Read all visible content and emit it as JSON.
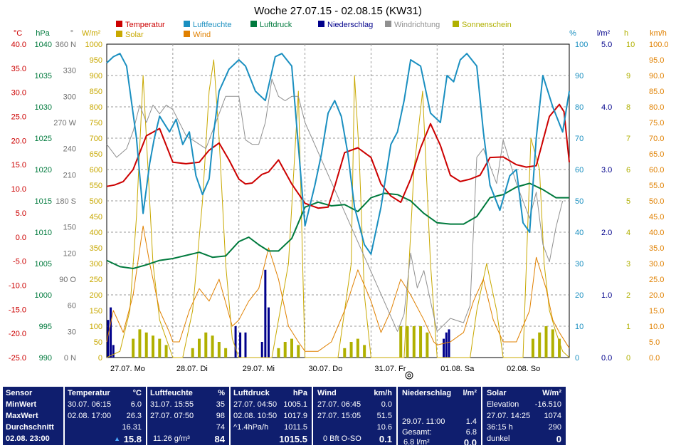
{
  "chart_data": {
    "type": "line",
    "title": "Woche 27.07.15 - 02.08.15 (KW31)",
    "x_range": [
      "2015-07-27 00:00",
      "2015-08-03 00:00"
    ],
    "day_labels": [
      "27.07. Mo",
      "28.07. Di",
      "29.07. Mi",
      "30.07. Do",
      "31.07. Fr",
      "01.08. Sa",
      "02.08. So"
    ],
    "grid": true,
    "legend": [
      {
        "name": "Temperatur",
        "color": "#cc0000"
      },
      {
        "name": "Luftfeuchte",
        "color": "#1a8fc0"
      },
      {
        "name": "Luftdruck",
        "color": "#007a3d"
      },
      {
        "name": "Niederschlag",
        "color": "#00008b"
      },
      {
        "name": "Windrichtung",
        "color": "#909090"
      },
      {
        "name": "Sonnenschein",
        "color": "#b0b000"
      },
      {
        "name": "Solar",
        "color": "#c8a800"
      },
      {
        "name": "Wind",
        "color": "#e08000"
      }
    ],
    "axes": {
      "temperature": {
        "unit": "°C",
        "range": [
          -25,
          40
        ],
        "ticks": [
          "40.0",
          "35.0",
          "30.0",
          "25.0",
          "20.0",
          "15.0",
          "10.0",
          "5.0",
          "0.0",
          "-5.0",
          "-10.0",
          "-15.0",
          "-20.0",
          "-25.0"
        ],
        "color": "#cc0000"
      },
      "pressure": {
        "unit": "hPa",
        "range": [
          990,
          1040
        ],
        "ticks": [
          "1040",
          "1035",
          "1030",
          "1025",
          "1020",
          "1015",
          "1010",
          "1005",
          "1000",
          "995",
          "990"
        ],
        "color": "#007a3d"
      },
      "direction": {
        "unit": "°",
        "range": [
          0,
          360
        ],
        "ticks": [
          "360 N",
          "330",
          "300",
          "270 W",
          "240",
          "210",
          "180 S",
          "150",
          "120",
          "90 O",
          "60",
          "30",
          "0 N"
        ],
        "color": "#707070"
      },
      "solar": {
        "unit": "W/m²",
        "range": [
          0,
          1000
        ],
        "ticks": [
          "1000",
          "950",
          "900",
          "850",
          "800",
          "750",
          "700",
          "650",
          "600",
          "550",
          "500",
          "450",
          "400",
          "350",
          "300",
          "250",
          "200",
          "150",
          "100",
          "50",
          "0"
        ],
        "color": "#c8a800"
      },
      "humidity": {
        "unit": "%",
        "range": [
          0,
          100
        ],
        "ticks": [
          "100",
          "90",
          "80",
          "70",
          "60",
          "50",
          "40",
          "30",
          "20",
          "10",
          "0"
        ],
        "color": "#1a8fc0"
      },
      "rain": {
        "unit": "l/m²",
        "range": [
          0,
          5
        ],
        "ticks": [
          "5.0",
          "4.0",
          "3.0",
          "2.0",
          "1.0",
          "0.0"
        ],
        "color": "#00008b"
      },
      "sunshine": {
        "unit": "h",
        "range": [
          0,
          10
        ],
        "ticks": [
          "10",
          "9",
          "8",
          "7",
          "6",
          "5",
          "4",
          "3",
          "2",
          "1",
          "0"
        ],
        "color": "#b0b000"
      },
      "wind": {
        "unit": "km/h",
        "range": [
          0,
          100
        ],
        "ticks": [
          "100.0",
          "95.0",
          "90.0",
          "85.0",
          "80.0",
          "75.0",
          "70.0",
          "65.0",
          "60.0",
          "55.0",
          "50.0",
          "45.0",
          "40.0",
          "35.0",
          "30.0",
          "25.0",
          "20.0",
          "15.0",
          "10.0",
          "5.0",
          "0.0"
        ],
        "color": "#e08000"
      }
    },
    "series": [
      {
        "name": "Temperatur",
        "axis": "temperature",
        "color": "#cc0000",
        "x": [
          0,
          0.12,
          0.25,
          0.4,
          0.6,
          0.8,
          1.0,
          1.2,
          1.4,
          1.55,
          1.7,
          1.85,
          2.0,
          2.1,
          2.2,
          2.35,
          2.45,
          2.6,
          2.8,
          3.0,
          3.2,
          3.35,
          3.45,
          3.6,
          3.8,
          4.0,
          4.15,
          4.3,
          4.45,
          4.6,
          4.75,
          4.9,
          5.05,
          5.2,
          5.35,
          5.5,
          5.65,
          5.8,
          6.0,
          6.2,
          6.35,
          6.5,
          6.7,
          6.85,
          6.92,
          7.0
        ],
        "y": [
          10.5,
          10.8,
          11.5,
          14,
          21,
          22.5,
          15.5,
          15.2,
          15.5,
          18,
          19.5,
          16,
          12,
          11,
          11.2,
          13,
          13.5,
          16,
          11,
          7,
          6,
          6.2,
          10.5,
          17.5,
          18.5,
          16.5,
          11,
          8.5,
          7.2,
          12,
          18.5,
          23.5,
          19,
          12.8,
          11.5,
          12,
          12.8,
          16.5,
          16.6,
          15,
          14.5,
          14.8,
          25,
          27.5,
          26,
          15.5
        ]
      },
      {
        "name": "Luftfeuchte",
        "axis": "humidity",
        "color": "#1a8fc0",
        "x": [
          0,
          0.1,
          0.2,
          0.3,
          0.45,
          0.55,
          0.65,
          0.72,
          0.8,
          0.95,
          1.05,
          1.15,
          1.25,
          1.35,
          1.45,
          1.55,
          1.62,
          1.7,
          1.85,
          2.0,
          2.1,
          2.25,
          2.4,
          2.55,
          2.65,
          2.8,
          3.0,
          3.15,
          3.25,
          3.35,
          3.45,
          3.55,
          3.65,
          3.75,
          3.9,
          4.0,
          4.15,
          4.3,
          4.4,
          4.5,
          4.6,
          4.75,
          4.9,
          5.05,
          5.15,
          5.25,
          5.35,
          5.45,
          5.6,
          5.7,
          5.8,
          5.95,
          6.1,
          6.2,
          6.3,
          6.4,
          6.5,
          6.6,
          6.75,
          6.9,
          7.0
        ],
        "y": [
          94,
          96,
          97,
          93,
          70,
          46,
          62,
          70,
          77,
          72,
          76,
          68,
          72,
          58,
          52,
          57,
          72,
          85,
          92,
          95,
          93,
          85,
          82,
          96,
          97,
          93,
          42,
          55,
          65,
          78,
          82,
          77,
          65,
          48,
          36,
          33,
          48,
          68,
          72,
          82,
          95,
          93,
          78,
          75,
          90,
          88,
          95,
          97,
          93,
          72,
          55,
          47,
          58,
          60,
          43,
          40,
          70,
          90,
          80,
          72,
          85
        ]
      },
      {
        "name": "Luftdruck",
        "axis": "pressure",
        "color": "#007a3d",
        "x": [
          0,
          0.2,
          0.4,
          0.6,
          0.8,
          1.0,
          1.2,
          1.4,
          1.6,
          1.8,
          2.0,
          2.15,
          2.3,
          2.45,
          2.6,
          2.8,
          3.0,
          3.2,
          3.4,
          3.6,
          3.8,
          4.0,
          4.2,
          4.4,
          4.6,
          4.8,
          5.0,
          5.2,
          5.4,
          5.6,
          5.8,
          6.0,
          6.2,
          6.4,
          6.6,
          6.8,
          7.0
        ],
        "y": [
          1005.5,
          1004.5,
          1004.2,
          1004.8,
          1005.5,
          1005.8,
          1006.3,
          1006.8,
          1006.0,
          1006.2,
          1008.5,
          1009.2,
          1008.0,
          1007.0,
          1007.0,
          1009.0,
          1014.0,
          1014.8,
          1014.2,
          1014.4,
          1013.3,
          1015.5,
          1016.2,
          1016.0,
          1015.0,
          1013.0,
          1011.5,
          1011.3,
          1011.3,
          1012.5,
          1015.5,
          1016.0,
          1017.2,
          1017.8,
          1016.8,
          1015.5,
          1015.5
        ]
      },
      {
        "name": "Windrichtung",
        "axis": "direction",
        "color": "#909090",
        "x": [
          0,
          0.15,
          0.3,
          0.4,
          0.5,
          0.6,
          0.7,
          0.8,
          0.9,
          1.0,
          1.1,
          1.2,
          1.3,
          1.4,
          1.5,
          1.6,
          1.7,
          1.8,
          1.9,
          2.0,
          2.1,
          2.2,
          2.3,
          2.4,
          2.5,
          2.6,
          2.7,
          2.8,
          2.9,
          3.0,
          4.4,
          4.5,
          4.6,
          4.7,
          4.8,
          4.9,
          5.0,
          5.2,
          5.4,
          5.5,
          5.6,
          5.7,
          5.8,
          5.9,
          6.0,
          6.2,
          6.4,
          6.5,
          6.6,
          6.7,
          6.8,
          6.9
        ],
        "y": [
          245,
          230,
          240,
          260,
          290,
          270,
          290,
          280,
          290,
          285,
          270,
          255,
          250,
          245,
          240,
          260,
          280,
          300,
          300,
          300,
          250,
          245,
          245,
          270,
          320,
          300,
          295,
          300,
          300,
          270,
          30,
          50,
          120,
          80,
          100,
          65,
          30,
          45,
          40,
          60,
          230,
          240,
          220,
          200,
          250,
          200,
          160,
          190,
          130,
          110,
          150,
          180
        ]
      },
      {
        "name": "Solar",
        "axis": "solar",
        "color": "#c8a800",
        "x": [
          0,
          0.2,
          0.35,
          0.45,
          0.55,
          0.6,
          0.7,
          0.8,
          0.9,
          1.0,
          1.15,
          1.3,
          1.45,
          1.55,
          1.62,
          1.7,
          1.8,
          1.9,
          2.0,
          2.5,
          2.75,
          2.9,
          3.0,
          3.5,
          3.7,
          3.75,
          3.82,
          3.9,
          4.0,
          4.5,
          4.65,
          4.78,
          4.9,
          5.0,
          5.5,
          5.6,
          5.75,
          5.9,
          6.0,
          6.3,
          6.42,
          6.55,
          6.62,
          6.7,
          6.8,
          6.9,
          7.0
        ],
        "y": [
          0,
          20,
          150,
          450,
          900,
          700,
          300,
          120,
          60,
          0,
          0,
          150,
          500,
          850,
          950,
          700,
          300,
          60,
          0,
          0,
          300,
          850,
          0,
          0,
          300,
          900,
          650,
          200,
          0,
          0,
          600,
          850,
          300,
          0,
          0,
          150,
          300,
          150,
          0,
          0,
          700,
          600,
          300,
          150,
          80,
          20,
          0
        ]
      },
      {
        "name": "Wind",
        "axis": "wind",
        "color": "#e08000",
        "x": [
          0,
          0.1,
          0.25,
          0.4,
          0.55,
          0.65,
          0.8,
          0.95,
          1.0,
          1.1,
          1.25,
          1.4,
          1.55,
          1.7,
          1.9,
          2.0,
          2.15,
          2.3,
          2.45,
          2.6,
          2.75,
          2.9,
          3.0,
          3.2,
          3.4,
          3.6,
          3.8,
          4.0,
          4.15,
          4.3,
          4.45,
          4.6,
          4.8,
          4.95,
          5.0,
          5.2,
          5.4,
          5.55,
          5.7,
          5.85,
          6.0,
          6.2,
          6.4,
          6.5,
          6.65,
          6.75,
          6.85,
          7.0
        ],
        "y": [
          5,
          15,
          8,
          20,
          42,
          30,
          15,
          8,
          5,
          5,
          15,
          22,
          18,
          25,
          10,
          12,
          18,
          22,
          35,
          25,
          10,
          5,
          2,
          2,
          5,
          15,
          28,
          18,
          8,
          15,
          25,
          20,
          12,
          5,
          4,
          5,
          8,
          18,
          25,
          12,
          5,
          5,
          15,
          32,
          22,
          12,
          8,
          3
        ]
      }
    ],
    "niederschlag": {
      "axis": "rain",
      "color": "#00008b",
      "x": [
        0.02,
        0.06,
        0.1,
        1.95,
        2.02,
        2.1,
        2.35,
        2.4,
        2.45,
        5.1,
        5.14,
        5.18
      ],
      "values": [
        0.6,
        0.8,
        0.2,
        0.5,
        0.4,
        0.4,
        0.25,
        1.4,
        0.8,
        0.3,
        0.4,
        0.45
      ]
    },
    "sonnenschein": {
      "axis": "sunshine",
      "color": "#b0b000",
      "x": [
        0.4,
        0.5,
        0.6,
        0.7,
        0.8,
        0.9,
        1.3,
        1.4,
        1.5,
        1.6,
        1.7,
        1.8,
        2.6,
        2.7,
        2.8,
        2.9,
        3.6,
        3.7,
        3.8,
        3.9,
        4.45,
        4.55,
        4.65,
        4.75,
        4.85,
        6.45,
        6.55,
        6.65,
        6.75,
        6.85
      ],
      "values": [
        0.6,
        0.9,
        0.8,
        0.7,
        0.6,
        0.4,
        0.3,
        0.6,
        0.8,
        0.7,
        0.5,
        0.3,
        0.3,
        0.5,
        0.6,
        0.4,
        0.3,
        0.5,
        0.6,
        0.4,
        1.0,
        1.0,
        1.0,
        1.0,
        0.8,
        0.6,
        0.8,
        1.0,
        0.9,
        0.6
      ]
    }
  },
  "stats": {
    "sensor": {
      "header": "Sensor",
      "rows": [
        "MinWert",
        "MaxWert",
        "Durchschnitt"
      ],
      "footer": "02.08. 23:00"
    },
    "temperature": {
      "header": "Temperatur",
      "unit": "°C",
      "min_time": "30.07.  06:15",
      "min_value": "6.0",
      "max_time": "02.08.  17:00",
      "max_value": "26.3",
      "avg_value": "16.31",
      "current_value": "15.8",
      "trend_icon": "arrow-up"
    },
    "humidity": {
      "header": "Luftfeuchte",
      "unit": "%",
      "min_time": "31.07.  15:55",
      "min_value": "35",
      "max_time": "27.07.  07:50",
      "max_value": "98",
      "avg_value": "74",
      "footer_text": "11.26 g/m³",
      "current_value": "84"
    },
    "pressure": {
      "header": "Luftdruck",
      "unit": "hPa",
      "min_time": "27.07.  04:50",
      "min_value": "1005.1",
      "max_time": "02.08.  10:50",
      "max_value": "1017.9",
      "trend_text": "^1.4hPa/h",
      "avg_value": "1011.5",
      "current_value": "1015.5"
    },
    "wind": {
      "header": "Wind",
      "unit": "km/h",
      "min_time": "27.07.  06:45",
      "min_value": "0.0",
      "max_time": "27.07.  15:05",
      "max_value": "51.5",
      "avg_value": "10.6",
      "footer_text": "0 Bft O-SO",
      "current_value": "0.1"
    },
    "rain": {
      "header": "Niederschlag",
      "unit": "l/m²",
      "max_time": "29.07.  11:00",
      "max_value": "1.4",
      "total_label": "Gesamt:",
      "total_value": "6.8",
      "footer_text": "6.8 l/m²",
      "current_value": "0.0"
    },
    "solar": {
      "header": "Solar",
      "unit": "W/m²",
      "elev_label": "Elevation",
      "elev_value": "-16.510",
      "max_time": "27.07.  14:25",
      "max_value": "1074",
      "sun_hours": "36:15 h",
      "sun_value": "290",
      "footer_text": "dunkel",
      "current_value": "0"
    }
  }
}
